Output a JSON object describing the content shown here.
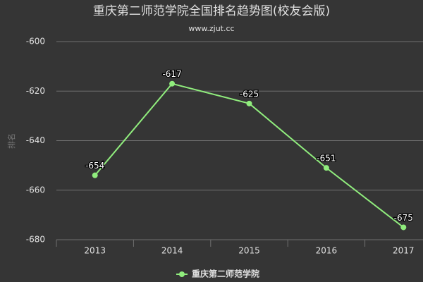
{
  "chart_data": {
    "type": "line",
    "title": "重庆第二师范学院全国排名趋势图(校友会版)",
    "subtitle": "www.zjut.cc",
    "y_label": "排名",
    "categories": [
      "2013",
      "2014",
      "2015",
      "2016",
      "2017"
    ],
    "series": [
      {
        "name": "重庆第二师范学院",
        "color": "#90ed7d",
        "values": [
          -654,
          -617,
          -625,
          -651,
          -675
        ]
      }
    ],
    "ylim": [
      -680,
      -600
    ],
    "yticks": [
      -680,
      -660,
      -640,
      -620,
      -600
    ],
    "grid": true,
    "legend": "bottom"
  }
}
